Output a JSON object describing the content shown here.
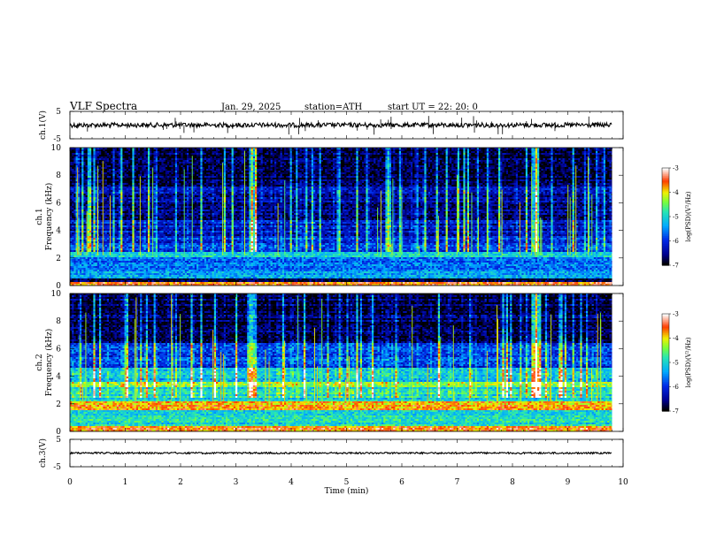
{
  "header": {
    "title": "VLF  Spectra",
    "date": "Jan. 29, 2025",
    "station": "station=ATH",
    "start": "start  UT  =   22: 20: 0"
  },
  "chart_data": [
    {
      "type": "line",
      "panel": "ch1-waveform",
      "ylabel": "ch.1(V)",
      "y_ticks": [
        "5",
        "-5"
      ],
      "ylim": [
        -5,
        5
      ],
      "xlim": [
        0,
        10
      ],
      "x_ticks": [
        "0",
        "1",
        "2",
        "3",
        "4",
        "5",
        "6",
        "7",
        "8",
        "9",
        "10"
      ],
      "xlabel": "Time  (min)",
      "data_end_min": 9.8,
      "description_values": {
        "baseline_v": 0.0,
        "noise_amplitude_v": 1.0
      }
    },
    {
      "type": "heatmap",
      "panel": "ch1-spectrogram",
      "ylabel": "ch.1\nFrequency  (kHz)",
      "ylabel_lines": [
        "ch.1",
        "Frequency  (kHz)"
      ],
      "y_ticks": [
        "0",
        "2",
        "4",
        "6",
        "8",
        "10"
      ],
      "ylim": [
        0,
        10
      ],
      "xlim": [
        0,
        10
      ],
      "data_end_min": 9.8,
      "colorbar": {
        "label": "log(PSD)(V²/Hz)",
        "ticks": [
          "-3",
          "-4",
          "-5",
          "-6",
          "-7"
        ],
        "range": [
          -7,
          -3
        ]
      },
      "bands_khz": [
        {
          "f0": 0.0,
          "f1": 0.3,
          "level": -3.5
        },
        {
          "f0": 0.3,
          "f1": 0.6,
          "level": -7.0
        },
        {
          "f0": 0.6,
          "f1": 1.2,
          "level": -5.4
        },
        {
          "f0": 1.2,
          "f1": 2.1,
          "level": -5.7
        },
        {
          "f0": 2.1,
          "f1": 2.5,
          "level": -5.0
        },
        {
          "f0": 2.5,
          "f1": 3.5,
          "level": -6.0
        },
        {
          "f0": 3.5,
          "f1": 4.8,
          "level": -6.3
        },
        {
          "f0": 4.8,
          "f1": 7.5,
          "level": -6.5
        },
        {
          "f0": 7.5,
          "f1": 10.0,
          "level": -6.9
        }
      ],
      "transient_minutes": [
        3.3,
        8.4
      ]
    },
    {
      "type": "heatmap",
      "panel": "ch2-spectrogram",
      "ylabel": "ch.2\nFrequency  (kHz)",
      "ylabel_lines": [
        "ch.2",
        "Frequency  (kHz)"
      ],
      "y_ticks": [
        "0",
        "2",
        "4",
        "6",
        "8",
        "10"
      ],
      "ylim": [
        0,
        10
      ],
      "xlim": [
        0,
        10
      ],
      "data_end_min": 9.8,
      "colorbar": {
        "label": "log(PSD)(V²/Hz)",
        "ticks": [
          "-3",
          "-4",
          "-5",
          "-6",
          "-7"
        ],
        "range": [
          -7,
          -3
        ]
      },
      "bands_khz": [
        {
          "f0": 0.0,
          "f1": 0.4,
          "level": -3.5
        },
        {
          "f0": 0.4,
          "f1": 1.6,
          "level": -5.0
        },
        {
          "f0": 1.6,
          "f1": 2.3,
          "level": -3.9
        },
        {
          "f0": 2.3,
          "f1": 3.3,
          "level": -5.0
        },
        {
          "f0": 3.3,
          "f1": 3.7,
          "level": -4.4
        },
        {
          "f0": 3.7,
          "f1": 4.7,
          "level": -5.2
        },
        {
          "f0": 4.7,
          "f1": 6.5,
          "level": -6.0
        },
        {
          "f0": 6.5,
          "f1": 10.0,
          "level": -6.8
        }
      ],
      "transient_minutes": [
        3.3,
        8.4
      ]
    },
    {
      "type": "line",
      "panel": "ch3-waveform",
      "ylabel": "ch.3(V)",
      "y_ticks": [
        "5",
        "-5"
      ],
      "ylim": [
        -5,
        5
      ],
      "xlim": [
        0,
        10
      ],
      "data_end_min": 9.8,
      "description_values": {
        "baseline_v": 0.0,
        "noise_amplitude_v": 0.3
      }
    }
  ],
  "colors": {
    "background": "#ffffff",
    "axis": "#000000",
    "trace": "#000000"
  }
}
